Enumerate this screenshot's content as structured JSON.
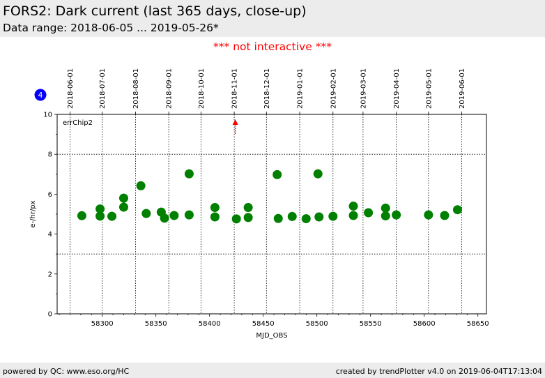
{
  "header": {
    "title": "FORS2: Dark current (last 365 days, close-up)",
    "subtitle": "Data range: 2018-06-05 ... 2019-05-26*"
  },
  "notice": "*** not interactive ***",
  "footer": {
    "left": "powered by QC: www.eso.org/HC",
    "right": "created by trendPlotter v4.0 on 2019-06-04T17:13:04"
  },
  "badge": "4",
  "colors": {
    "points": "#008000",
    "arrow": "#ff0000",
    "badge": "#0000ff"
  },
  "chart_data": {
    "type": "scatter",
    "annotation": "errChip2",
    "xlabel": "MJD_OBS",
    "ylabel": "e-/hr/px",
    "xlim": [
      58258,
      58658
    ],
    "ylim": [
      0,
      10
    ],
    "x_ticks": [
      58300,
      58350,
      58400,
      58450,
      58500,
      58550,
      58600,
      58650
    ],
    "y_ticks": [
      0,
      2,
      4,
      6,
      8,
      10
    ],
    "reference_lines_y": [
      3,
      8
    ],
    "date_ticks": [
      {
        "label": "2018-06-01",
        "mjd": 58270
      },
      {
        "label": "2018-07-01",
        "mjd": 58300
      },
      {
        "label": "2018-08-01",
        "mjd": 58331
      },
      {
        "label": "2018-09-01",
        "mjd": 58362
      },
      {
        "label": "2018-10-01",
        "mjd": 58392
      },
      {
        "label": "2018-11-01",
        "mjd": 58423
      },
      {
        "label": "2018-12-01",
        "mjd": 58453
      },
      {
        "label": "2019-01-01",
        "mjd": 58484
      },
      {
        "label": "2019-02-01",
        "mjd": 58515
      },
      {
        "label": "2019-03-01",
        "mjd": 58543
      },
      {
        "label": "2019-04-01",
        "mjd": 58574
      },
      {
        "label": "2019-05-01",
        "mjd": 58604
      },
      {
        "label": "2019-06-01",
        "mjd": 58635
      }
    ],
    "outlier_marker_mjd": 58424,
    "points": [
      {
        "x": 58281,
        "y": 4.92
      },
      {
        "x": 58298,
        "y": 5.26
      },
      {
        "x": 58298,
        "y": 4.9
      },
      {
        "x": 58309,
        "y": 4.89
      },
      {
        "x": 58320,
        "y": 5.8
      },
      {
        "x": 58320,
        "y": 5.35
      },
      {
        "x": 58336,
        "y": 6.42
      },
      {
        "x": 58341,
        "y": 5.03
      },
      {
        "x": 58355,
        "y": 5.1
      },
      {
        "x": 58358,
        "y": 4.8
      },
      {
        "x": 58367,
        "y": 4.93
      },
      {
        "x": 58381,
        "y": 7.02
      },
      {
        "x": 58381,
        "y": 4.96
      },
      {
        "x": 58405,
        "y": 5.33
      },
      {
        "x": 58405,
        "y": 4.86
      },
      {
        "x": 58425,
        "y": 4.76
      },
      {
        "x": 58436,
        "y": 5.33
      },
      {
        "x": 58436,
        "y": 4.83
      },
      {
        "x": 58463,
        "y": 6.98
      },
      {
        "x": 58464,
        "y": 4.78
      },
      {
        "x": 58477,
        "y": 4.88
      },
      {
        "x": 58490,
        "y": 4.77
      },
      {
        "x": 58501,
        "y": 7.02
      },
      {
        "x": 58502,
        "y": 4.86
      },
      {
        "x": 58515,
        "y": 4.89
      },
      {
        "x": 58534,
        "y": 5.4
      },
      {
        "x": 58534,
        "y": 4.93
      },
      {
        "x": 58548,
        "y": 5.07
      },
      {
        "x": 58564,
        "y": 5.3
      },
      {
        "x": 58564,
        "y": 4.91
      },
      {
        "x": 58574,
        "y": 4.96
      },
      {
        "x": 58604,
        "y": 4.96
      },
      {
        "x": 58619,
        "y": 4.93
      },
      {
        "x": 58631,
        "y": 5.22
      }
    ]
  }
}
